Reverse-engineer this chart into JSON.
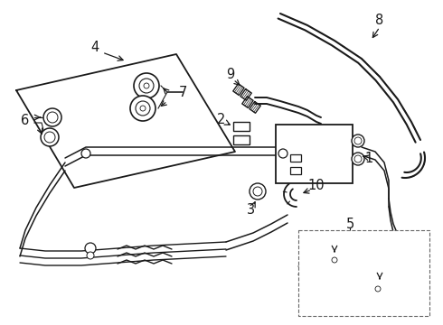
{
  "background": "#ffffff",
  "line_color": "#1a1a1a",
  "line_width": 1.3,
  "label_fontsize": 10.5
}
